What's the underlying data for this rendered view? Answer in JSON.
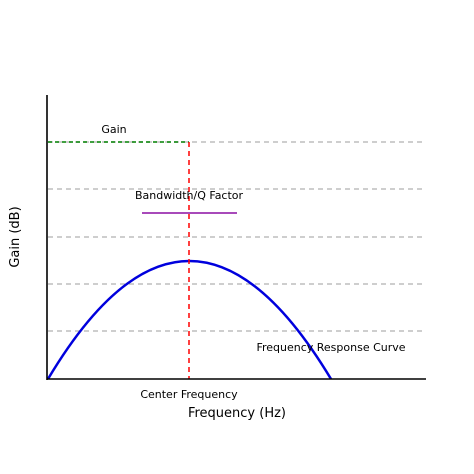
{
  "diagram": {
    "labels": {
      "gain": "Gain",
      "bandwidth": "Bandwidth/Q Factor",
      "curve": "Frequency Response Curve",
      "center_frequency": "Center Frequency"
    },
    "axes": {
      "x_label": "Frequency (Hz)",
      "y_label": "Gain (dB)"
    },
    "colors": {
      "curve": "#0000dd",
      "center_line": "#ff0000",
      "gain_line": "#008000",
      "bandwidth_line": "#9b30b0",
      "grid": "#b0b0b0",
      "axis": "#000000"
    }
  }
}
